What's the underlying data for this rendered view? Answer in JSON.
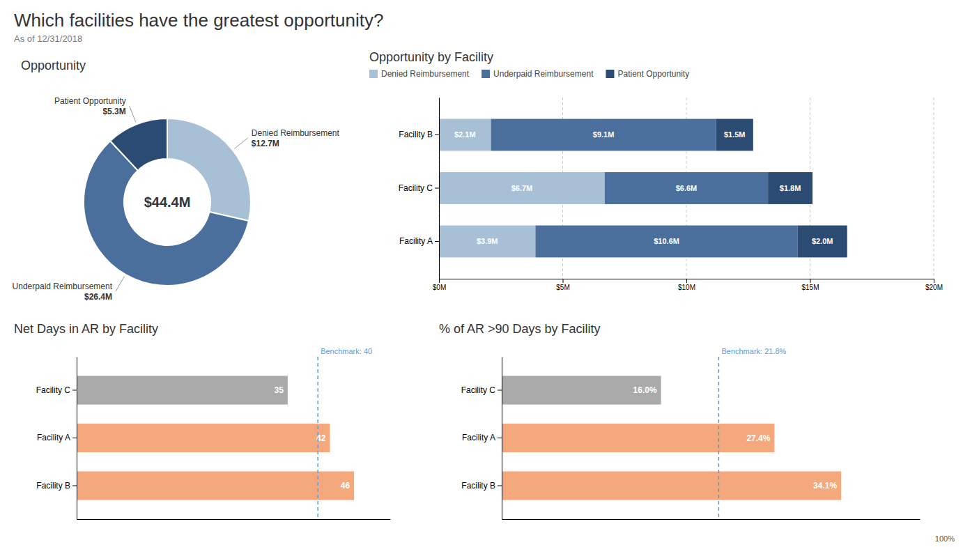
{
  "title": "Which facilities have the greatest opportunity?",
  "subtitle": "As of 12/31/2018",
  "annotations": [
    "100%"
  ],
  "chart_data": [
    {
      "type": "donut",
      "title": "Opportunity",
      "categories": [
        "Denied Reimbursement",
        "Underpaid Reimbursement",
        "Patient Opportunity"
      ],
      "values": [
        12.7,
        26.4,
        5.3
      ],
      "value_labels": [
        "$12.7M",
        "$26.4M",
        "$5.3M"
      ],
      "colors": [
        "#a8c0d6",
        "#4a6f9c",
        "#2c4b73"
      ],
      "data_labels": true,
      "annotations": [
        "$44.4M"
      ]
    },
    {
      "type": "bar",
      "title": "Opportunity by Facility",
      "orientation": "horizontal",
      "stacked": true,
      "categories": [
        "Facility A",
        "Facility C",
        "Facility B"
      ],
      "series": [
        {
          "name": "Denied Reimbursement",
          "color": "#a8c0d6",
          "values": [
            3.9,
            6.7,
            2.1
          ],
          "value_labels": [
            "$3.9M",
            "$6.7M",
            "$2.1M"
          ]
        },
        {
          "name": "Underpaid Reimbursement",
          "color": "#4a6f9c",
          "values": [
            10.6,
            6.6,
            9.1
          ],
          "value_labels": [
            "$10.6M",
            "$6.6M",
            "$9.1M"
          ]
        },
        {
          "name": "Patient Opportunity",
          "color": "#2c4b73",
          "values": [
            2.0,
            1.8,
            1.5
          ],
          "value_labels": [
            "$2.0M",
            "$1.8M",
            "$1.5M"
          ]
        }
      ],
      "xlim": [
        0,
        20
      ],
      "xticks": [
        {
          "value": 0,
          "label": "$0M"
        },
        {
          "value": 5,
          "label": "$5M"
        },
        {
          "value": 10,
          "label": "$10M"
        },
        {
          "value": 15,
          "label": "$15M"
        },
        {
          "value": 20,
          "label": "$20M"
        }
      ],
      "grid": true,
      "legend": "top",
      "data_labels": true
    },
    {
      "type": "bar",
      "title": "Net Days in AR by Facility",
      "orientation": "horizontal",
      "categories": [
        "Facility B",
        "Facility A",
        "Facility C"
      ],
      "values": [
        46,
        42,
        35
      ],
      "colors": [
        "#f5a87c",
        "#f5a87c",
        "#aaaaaa"
      ],
      "benchmark": {
        "value": 40,
        "label": "Benchmark: 40",
        "color": "#5b9bd5"
      },
      "xlim": [
        0,
        52
      ],
      "tick_labels": "y",
      "data_labels": true
    },
    {
      "type": "bar",
      "title": "% of AR >90 Days by Facility",
      "orientation": "horizontal",
      "categories": [
        "Facility B",
        "Facility A",
        "Facility C"
      ],
      "values": [
        34.1,
        27.4,
        16.0
      ],
      "value_labels": [
        "34.1%",
        "27.4%",
        "16.0%"
      ],
      "colors": [
        "#f5a87c",
        "#f5a87c",
        "#aaaaaa"
      ],
      "benchmark": {
        "value": 21.8,
        "label": "Benchmark: 21.8%",
        "color": "#5b9bd5"
      },
      "xlim": [
        0,
        42
      ],
      "tick_labels": "y",
      "data_labels": true
    }
  ]
}
